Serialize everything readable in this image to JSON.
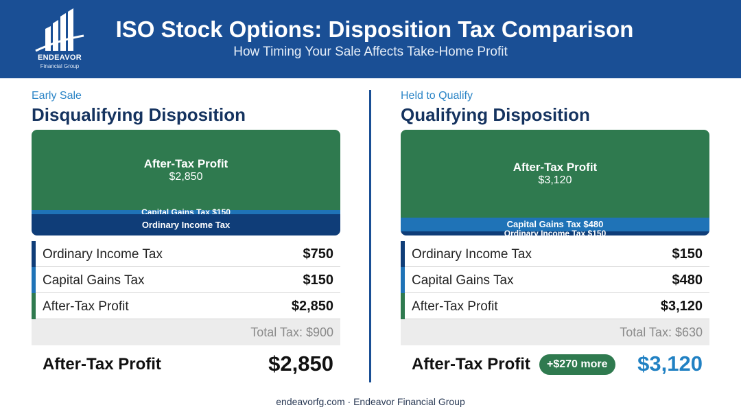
{
  "header": {
    "title": "ISO Stock Options: Disposition Tax Comparison",
    "subtitle": "How Timing Your Sale Affects Take-Home Profit",
    "logo_name": "ENDEAVOR",
    "logo_sub": "Financial Group",
    "background": "#1a4f95"
  },
  "chart_data": [
    {
      "type": "bar",
      "stacked": true,
      "eyebrow": "Early Sale",
      "title": "Disqualifying Disposition",
      "series": [
        {
          "name": "Ordinary Income Tax",
          "label": "Ordinary Income Tax",
          "value_label": "$750",
          "value": 750,
          "color": "#0f3d78"
        },
        {
          "name": "Capital Gains Tax",
          "label": "Capital Gains Tax $150",
          "value_label": "$150",
          "value": 150,
          "color": "#1f73b7"
        },
        {
          "name": "After-Tax Profit",
          "label": "After-Tax Profit",
          "value_label": "$2,850",
          "value": 2850,
          "color": "#2f7a4f"
        }
      ],
      "total_tax_label": "Total Tax: $900",
      "final_label": "After-Tax Profit",
      "final_value": "$2,850"
    },
    {
      "type": "bar",
      "stacked": true,
      "eyebrow": "Held to Qualify",
      "title": "Qualifying Disposition",
      "series": [
        {
          "name": "Ordinary Income Tax",
          "label": "Ordinary Income Tax $150",
          "value_label": "$150",
          "value": 150,
          "color": "#0f3d78"
        },
        {
          "name": "Capital Gains Tax",
          "label": "Capital Gains Tax $480",
          "value_label": "$480",
          "value": 480,
          "color": "#1f73b7"
        },
        {
          "name": "After-Tax Profit",
          "label": "After-Tax Profit",
          "value_label": "$3,120",
          "value": 3120,
          "color": "#2f7a4f"
        }
      ],
      "total_tax_label": "Total Tax: $630",
      "final_label": "After-Tax Profit",
      "final_value": "$3,120",
      "badge": "+$270 more",
      "final_color": "#2181c3"
    }
  ],
  "footer": "endeavorfg.com · Endeavor Financial Group"
}
